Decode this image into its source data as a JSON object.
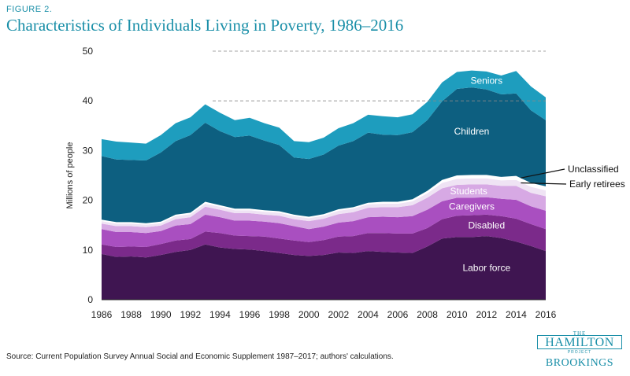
{
  "figure_label": "FIGURE 2.",
  "title": "Characteristics of Individuals Living in Poverty, 1986–2016",
  "source": "Source: Current Population Survey Annual Social and Economic Supplement 1987–2017; authors' calculations.",
  "logo": {
    "the": "THE",
    "name": "HAMILTON",
    "project": "PROJECT",
    "org": "BROOKINGS"
  },
  "colors": {
    "labor_force": "#3f1551",
    "disabled": "#7b2a8a",
    "caregivers": "#a94fc0",
    "students": "#d7a9e4",
    "early_retirees": "#efe3f4",
    "unclassified": "#ffffff",
    "children": "#0d5f80",
    "seniors": "#1e9dbe",
    "axis_text": "#222222",
    "grid": "#888888"
  },
  "chart_data": {
    "type": "area",
    "stacked": true,
    "x": [
      1986,
      1987,
      1988,
      1989,
      1990,
      1991,
      1992,
      1993,
      1994,
      1995,
      1996,
      1997,
      1998,
      1999,
      2000,
      2001,
      2002,
      2003,
      2004,
      2005,
      2006,
      2007,
      2008,
      2009,
      2010,
      2011,
      2012,
      2013,
      2014,
      2015,
      2016
    ],
    "xticks": [
      1986,
      1988,
      1990,
      1992,
      1994,
      1996,
      1998,
      2000,
      2002,
      2004,
      2006,
      2008,
      2010,
      2012,
      2014,
      2016
    ],
    "ylabel": "Millions of people",
    "ylim": [
      0,
      50
    ],
    "yticks": [
      0,
      10,
      20,
      30,
      40,
      50
    ],
    "grid": "horizontal dashed at 40 and 50",
    "series": [
      {
        "name": "Labor force",
        "color_key": "labor_force",
        "values": [
          9.2,
          8.6,
          8.7,
          8.5,
          9.0,
          9.6,
          10.0,
          11.1,
          10.5,
          10.2,
          10.1,
          9.8,
          9.4,
          9.0,
          8.8,
          9.0,
          9.5,
          9.4,
          9.8,
          9.6,
          9.5,
          9.4,
          10.7,
          12.3,
          12.6,
          12.6,
          12.8,
          12.4,
          11.7,
          10.8,
          9.8
        ]
      },
      {
        "name": "Disabled",
        "color_key": "disabled",
        "values": [
          1.9,
          2.0,
          2.0,
          2.1,
          2.2,
          2.3,
          2.2,
          2.6,
          2.9,
          2.7,
          2.7,
          2.9,
          2.9,
          2.9,
          2.8,
          3.0,
          3.2,
          3.4,
          3.6,
          3.8,
          3.8,
          3.9,
          3.7,
          3.9,
          4.3,
          4.4,
          4.3,
          4.4,
          4.6,
          4.4,
          4.4
        ]
      },
      {
        "name": "Caregivers",
        "color_key": "caregivers",
        "values": [
          3.1,
          3.0,
          2.9,
          2.8,
          2.6,
          3.0,
          3.0,
          3.4,
          3.2,
          3.0,
          3.1,
          3.0,
          3.1,
          2.9,
          2.6,
          2.7,
          2.8,
          3.0,
          3.2,
          3.3,
          3.3,
          3.5,
          3.7,
          3.6,
          3.6,
          3.5,
          3.5,
          3.5,
          3.8,
          3.6,
          3.7
        ]
      },
      {
        "name": "Students",
        "color_key": "students",
        "values": [
          1.1,
          1.2,
          1.2,
          1.2,
          1.1,
          1.3,
          1.4,
          1.6,
          1.5,
          1.5,
          1.5,
          1.4,
          1.5,
          1.4,
          1.6,
          1.6,
          1.7,
          1.8,
          1.9,
          1.9,
          2.0,
          2.2,
          2.4,
          2.6,
          2.6,
          2.7,
          2.6,
          2.6,
          2.8,
          2.7,
          2.9
        ]
      },
      {
        "name": "Early retirees",
        "color_key": "early_retirees",
        "values": [
          0.5,
          0.5,
          0.5,
          0.5,
          0.5,
          0.6,
          0.6,
          0.6,
          0.6,
          0.6,
          0.6,
          0.6,
          0.6,
          0.6,
          0.6,
          0.6,
          0.7,
          0.7,
          0.7,
          0.7,
          0.7,
          0.8,
          0.9,
          1.1,
          1.2,
          1.2,
          1.2,
          1.1,
          1.2,
          1.2,
          1.2
        ]
      },
      {
        "name": "Unclassified",
        "color_key": "unclassified",
        "values": [
          0.3,
          0.3,
          0.3,
          0.3,
          0.3,
          0.3,
          0.3,
          0.4,
          0.3,
          0.3,
          0.3,
          0.3,
          0.3,
          0.3,
          0.3,
          0.3,
          0.3,
          0.3,
          0.3,
          0.4,
          0.4,
          0.4,
          0.5,
          0.6,
          0.7,
          0.7,
          0.7,
          0.7,
          0.8,
          0.8,
          0.8
        ]
      },
      {
        "name": "Children",
        "color_key": "children",
        "values": [
          12.8,
          12.6,
          12.5,
          12.6,
          13.9,
          14.8,
          15.6,
          15.9,
          14.9,
          14.4,
          14.7,
          14.0,
          13.3,
          11.5,
          11.6,
          12.0,
          12.8,
          13.3,
          14.1,
          13.5,
          13.4,
          13.5,
          14.2,
          15.8,
          17.4,
          17.6,
          17.2,
          16.6,
          16.6,
          14.6,
          13.3
        ]
      },
      {
        "name": "Seniors",
        "color_key": "seniors",
        "values": [
          3.4,
          3.6,
          3.5,
          3.4,
          3.5,
          3.6,
          3.6,
          3.7,
          3.7,
          3.4,
          3.6,
          3.5,
          3.5,
          3.3,
          3.4,
          3.4,
          3.5,
          3.6,
          3.6,
          3.7,
          3.6,
          3.6,
          3.7,
          3.8,
          3.4,
          3.4,
          3.6,
          3.8,
          4.5,
          4.8,
          4.6
        ]
      }
    ]
  }
}
